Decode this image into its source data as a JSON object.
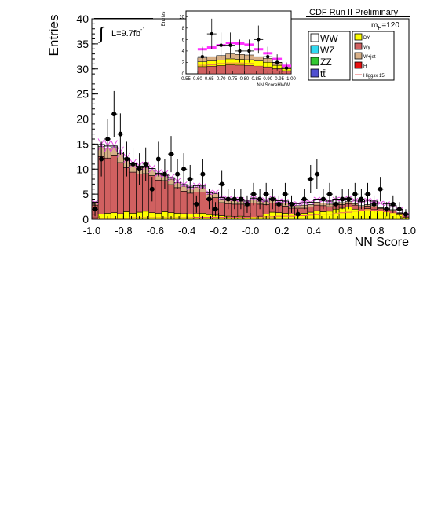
{
  "header": {
    "experiment": "CDF Run II Preliminary",
    "mass_label": "m",
    "mass_sub": "H",
    "mass_value": "=120"
  },
  "lumi": {
    "symbol": "∫",
    "text": "L=9.7fb",
    "sup": "-1"
  },
  "legend": {
    "left": [
      {
        "label": "WW",
        "color": "#ffffff"
      },
      {
        "label": "WZ",
        "color": "#33d9f0"
      },
      {
        "label": "ZZ",
        "color": "#33c733"
      },
      {
        "label": "tt̄",
        "color": "#5050d0"
      }
    ],
    "right": [
      {
        "label": "DY",
        "color": "#ffff00"
      },
      {
        "label": "Wγ",
        "color": "#d06060"
      },
      {
        "label": "W+jet",
        "color": "#d8b088"
      },
      {
        "label": "H",
        "color": "#e81010"
      },
      {
        "label": "Higgsx 15",
        "color": "#e86060",
        "line": true
      }
    ]
  },
  "chart_data": [
    {
      "type": "bar",
      "xlabel": "NN Score",
      "ylabel": "Entries",
      "xlim": [
        -1.0,
        1.0
      ],
      "ylim": [
        0,
        40
      ],
      "x_ticks": [
        "-1.0",
        "-0.8",
        "-0.6",
        "-0.4",
        "-0.2",
        "-0.0",
        "0.2",
        "0.4",
        "0.6",
        "0.8",
        "1.0"
      ],
      "y_ticks": [
        "0",
        "5",
        "10",
        "15",
        "20",
        "25",
        "30",
        "35",
        "40"
      ],
      "bins_edges": [
        -1.0,
        -0.96,
        -0.92,
        -0.88,
        -0.84,
        -0.8,
        -0.76,
        -0.72,
        -0.68,
        -0.64,
        -0.6,
        -0.56,
        -0.52,
        -0.48,
        -0.44,
        -0.4,
        -0.36,
        -0.32,
        -0.28,
        -0.24,
        -0.2,
        -0.16,
        -0.12,
        -0.08,
        -0.04,
        0.0,
        0.04,
        0.08,
        0.12,
        0.16,
        0.2,
        0.24,
        0.28,
        0.32,
        0.36,
        0.4,
        0.44,
        0.48,
        0.52,
        0.56,
        0.6,
        0.64,
        0.68,
        0.72,
        0.76,
        0.8,
        0.84,
        0.88,
        0.92,
        0.96,
        1.0
      ],
      "series": [
        {
          "name": "DY",
          "color": "#ffff00",
          "values": [
            0.3,
            1.0,
            1.2,
            1.3,
            1.1,
            1.5,
            1.2,
            1.4,
            1.6,
            1.3,
            1.2,
            1.5,
            1.3,
            1.2,
            1.1,
            1.0,
            1.1,
            1.2,
            0.9,
            0.8,
            0.7,
            0.6,
            0.5,
            0.6,
            0.5,
            0.5,
            0.6,
            1.0,
            1.4,
            1.3,
            1.2,
            1.0,
            0.9,
            1.2,
            1.4,
            1.7,
            1.5,
            1.6,
            2.0,
            2.2,
            2.4,
            2.0,
            1.8,
            2.1,
            1.9,
            1.7,
            1.6,
            1.3,
            0.9,
            0.4
          ]
        },
        {
          "name": "Wγ",
          "color": "#d06060",
          "values": [
            2.5,
            11.5,
            11.0,
            11.5,
            10.2,
            8.8,
            8.2,
            7.6,
            7.5,
            7.4,
            6.6,
            6.2,
            5.6,
            5.1,
            4.5,
            4.2,
            4.3,
            4.2,
            3.3,
            3.5,
            2.6,
            2.5,
            2.5,
            2.4,
            2.2,
            2.7,
            2.4,
            1.9,
            1.8,
            1.5,
            1.4,
            1.2,
            1.3,
            1.0,
            1.0,
            1.1,
            1.2,
            0.9,
            0.9,
            0.7,
            0.7,
            0.8,
            0.6,
            0.5,
            0.5,
            0.4,
            0.4,
            0.4,
            0.3,
            0.1
          ]
        },
        {
          "name": "W+jet",
          "color": "#d8b088",
          "values": [
            0.5,
            2.0,
            2.0,
            1.5,
            1.8,
            1.6,
            1.4,
            1.3,
            1.2,
            1.1,
            1.1,
            1.0,
            1.1,
            1.0,
            1.0,
            0.9,
            1.0,
            0.9,
            0.8,
            0.8,
            0.7,
            0.7,
            0.7,
            0.6,
            0.6,
            0.7,
            0.6,
            0.6,
            0.6,
            0.5,
            0.6,
            0.5,
            0.5,
            0.6,
            0.5,
            0.6,
            0.5,
            0.5,
            0.4,
            0.4,
            0.4,
            0.3,
            0.3,
            0.3,
            0.3,
            0.2,
            0.2,
            0.2,
            0.1,
            0.1
          ]
        },
        {
          "name": "WW",
          "color": "#ffffff",
          "values": [
            0.1,
            0.4,
            0.4,
            0.3,
            0.3,
            0.3,
            0.3,
            0.3,
            0.3,
            0.3,
            0.3,
            0.3,
            0.3,
            0.3,
            0.3,
            0.3,
            0.3,
            0.3,
            0.3,
            0.3,
            0.3,
            0.3,
            0.3,
            0.3,
            0.3,
            0.3,
            0.3,
            0.3,
            0.4,
            0.4,
            0.4,
            0.4,
            0.4,
            0.5,
            0.5,
            0.6,
            0.6,
            0.6,
            0.7,
            0.7,
            0.7,
            0.7,
            0.8,
            0.9,
            0.9,
            0.9,
            0.9,
            0.8,
            0.6,
            0.3
          ]
        }
      ],
      "higgs_x15": [
        0.1,
        0.2,
        0.2,
        0.2,
        0.2,
        0.2,
        0.3,
        0.3,
        0.3,
        0.3,
        0.3,
        0.3,
        0.3,
        0.3,
        0.3,
        0.3,
        0.4,
        0.4,
        0.4,
        0.4,
        0.4,
        0.4,
        0.4,
        0.4,
        0.4,
        0.5,
        0.5,
        0.5,
        0.5,
        0.6,
        0.6,
        0.6,
        0.7,
        0.7,
        0.8,
        0.9,
        1.0,
        1.0,
        1.1,
        1.3,
        1.4,
        1.6,
        1.8,
        1.9,
        1.8,
        1.7,
        1.5,
        1.3,
        1.0,
        0.5
      ],
      "data_points": {
        "x": [
          -0.98,
          -0.94,
          -0.9,
          -0.86,
          -0.82,
          -0.78,
          -0.74,
          -0.7,
          -0.66,
          -0.62,
          -0.58,
          -0.54,
          -0.5,
          -0.46,
          -0.42,
          -0.38,
          -0.34,
          -0.3,
          -0.26,
          -0.22,
          -0.18,
          -0.14,
          -0.1,
          -0.06,
          -0.02,
          0.02,
          0.06,
          0.1,
          0.14,
          0.18,
          0.22,
          0.26,
          0.3,
          0.34,
          0.38,
          0.42,
          0.46,
          0.5,
          0.54,
          0.58,
          0.62,
          0.66,
          0.7,
          0.74,
          0.78,
          0.82,
          0.86,
          0.9,
          0.94,
          0.98
        ],
        "y": [
          2,
          12,
          16,
          21,
          17,
          12,
          11,
          10,
          11,
          6,
          12,
          9,
          13,
          9,
          10,
          8,
          3,
          9,
          4,
          2,
          7,
          4,
          4,
          4,
          3,
          5,
          4,
          5,
          4,
          3,
          5,
          3,
          1,
          4,
          8,
          9,
          4,
          5,
          3,
          4,
          4,
          5,
          4,
          5,
          3,
          6,
          2,
          3,
          2,
          1
        ]
      }
    },
    {
      "type": "bar",
      "xlabel": "NN ScoreHWW",
      "ylabel": "Entries",
      "xlim": [
        0.55,
        1.0
      ],
      "ylim": [
        0,
        11
      ],
      "x_ticks": [
        "0.55",
        "0.60",
        "0.65",
        "0.70",
        "0.75",
        "0.80",
        "0.85",
        "0.90",
        "0.95",
        "1.00"
      ],
      "y_ticks": [
        "0",
        "2",
        "4",
        "6",
        "8",
        "10"
      ],
      "bins_edges": [
        0.6,
        0.64,
        0.68,
        0.72,
        0.76,
        0.8,
        0.84,
        0.88,
        0.92,
        0.96,
        1.0
      ],
      "total_bkg": [
        2.8,
        3.0,
        3.2,
        3.5,
        3.4,
        3.3,
        3.0,
        2.7,
        2.0,
        1.2
      ],
      "signal_plus_bkg": [
        4.3,
        4.6,
        5.0,
        5.4,
        5.3,
        5.1,
        4.3,
        3.6,
        2.6,
        1.4
      ],
      "higgs_x15": [
        1.5,
        1.6,
        1.8,
        1.9,
        1.9,
        1.8,
        1.3,
        0.9,
        0.6,
        0.2
      ],
      "data_points": {
        "x": [
          0.62,
          0.66,
          0.7,
          0.74,
          0.78,
          0.82,
          0.86,
          0.9,
          0.94,
          0.98
        ],
        "y": [
          3,
          7,
          5,
          5,
          4,
          4,
          6,
          3,
          2,
          1
        ]
      }
    }
  ]
}
